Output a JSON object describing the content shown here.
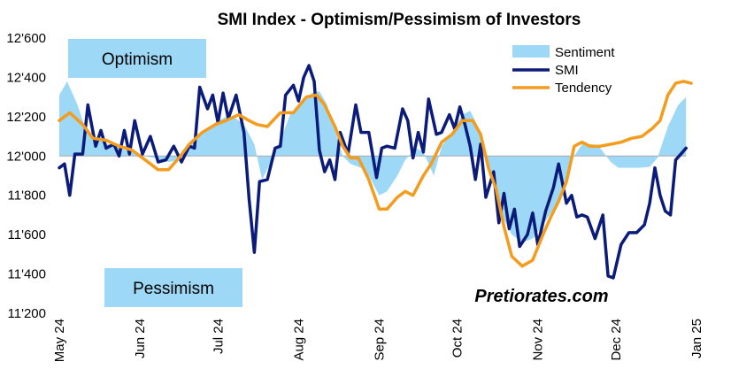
{
  "chart_data": {
    "type": "line",
    "title": "SMI Index - Optimism/Pessimism of Investors",
    "ylim": [
      11200,
      12600
    ],
    "yticks": [
      {
        "value": 12600,
        "label": "12'600"
      },
      {
        "value": 12400,
        "label": "12'400"
      },
      {
        "value": 12200,
        "label": "12'200"
      },
      {
        "value": 12000,
        "label": "12'000"
      },
      {
        "value": 11800,
        "label": "11'800"
      },
      {
        "value": 11600,
        "label": "11'600"
      },
      {
        "value": 11400,
        "label": "11'400"
      },
      {
        "value": 11200,
        "label": "11'200"
      }
    ],
    "xlim": [
      "2024-05-01",
      "2025-01-01"
    ],
    "xticks": [
      {
        "date": "2024-05-01",
        "label": "May 24"
      },
      {
        "date": "2024-06-01",
        "label": "Jun 24"
      },
      {
        "date": "2024-07-01",
        "label": "Jul 24"
      },
      {
        "date": "2024-08-01",
        "label": "Aug 24"
      },
      {
        "date": "2024-09-01",
        "label": "Sep 24"
      },
      {
        "date": "2024-10-01",
        "label": "Oct 24"
      },
      {
        "date": "2024-11-01",
        "label": "Nov 24"
      },
      {
        "date": "2024-12-01",
        "label": "Dec 24"
      },
      {
        "date": "2025-01-01",
        "label": "Jan 25"
      }
    ],
    "baseline": 12000,
    "legend_position": "top-right",
    "grid": false,
    "zone_labels": {
      "upper": "Optimism",
      "lower": "Pessimism"
    },
    "watermark": "Pretiorates.com",
    "series": [
      {
        "name": "Sentiment",
        "type": "area",
        "color": "#9dd9f6",
        "points": [
          [
            "2024-05-01",
            12310
          ],
          [
            "2024-05-04",
            12380
          ],
          [
            "2024-05-08",
            12260
          ],
          [
            "2024-05-11",
            12140
          ],
          [
            "2024-05-15",
            12090
          ],
          [
            "2024-05-20",
            12060
          ],
          [
            "2024-05-24",
            12040
          ],
          [
            "2024-05-29",
            12020
          ],
          [
            "2024-06-03",
            12000
          ],
          [
            "2024-06-08",
            11985
          ],
          [
            "2024-06-12",
            11970
          ],
          [
            "2024-06-15",
            11975
          ],
          [
            "2024-06-19",
            12030
          ],
          [
            "2024-06-22",
            12080
          ],
          [
            "2024-06-26",
            12120
          ],
          [
            "2024-06-30",
            12170
          ],
          [
            "2024-07-04",
            12200
          ],
          [
            "2024-07-08",
            12190
          ],
          [
            "2024-07-11",
            12160
          ],
          [
            "2024-07-15",
            12060
          ],
          [
            "2024-07-18",
            11880
          ],
          [
            "2024-07-21",
            11960
          ],
          [
            "2024-07-25",
            12080
          ],
          [
            "2024-07-29",
            12220
          ],
          [
            "2024-08-02",
            12260
          ],
          [
            "2024-08-06",
            12320
          ],
          [
            "2024-08-09",
            12330
          ],
          [
            "2024-08-12",
            12260
          ],
          [
            "2024-08-15",
            12130
          ],
          [
            "2024-08-18",
            12000
          ],
          [
            "2024-08-21",
            11960
          ],
          [
            "2024-08-25",
            11940
          ],
          [
            "2024-08-28",
            11900
          ],
          [
            "2024-09-01",
            11800
          ],
          [
            "2024-09-04",
            11820
          ],
          [
            "2024-09-08",
            11900
          ],
          [
            "2024-09-11",
            11980
          ],
          [
            "2024-09-15",
            12040
          ],
          [
            "2024-09-18",
            12020
          ],
          [
            "2024-09-22",
            11900
          ],
          [
            "2024-09-25",
            12050
          ],
          [
            "2024-09-29",
            12120
          ],
          [
            "2024-10-03",
            12210
          ],
          [
            "2024-10-06",
            12230
          ],
          [
            "2024-10-09",
            12150
          ],
          [
            "2024-10-12",
            12000
          ],
          [
            "2024-10-15",
            11840
          ],
          [
            "2024-10-18",
            11700
          ],
          [
            "2024-10-22",
            11600
          ],
          [
            "2024-10-26",
            11560
          ],
          [
            "2024-10-30",
            11580
          ],
          [
            "2024-11-03",
            11650
          ],
          [
            "2024-11-07",
            11730
          ],
          [
            "2024-11-11",
            11830
          ],
          [
            "2024-11-14",
            11980
          ],
          [
            "2024-11-18",
            12060
          ],
          [
            "2024-11-22",
            12060
          ],
          [
            "2024-11-25",
            12040
          ],
          [
            "2024-11-29",
            11970
          ],
          [
            "2024-12-02",
            11940
          ],
          [
            "2024-12-06",
            11940
          ],
          [
            "2024-12-10",
            11940
          ],
          [
            "2024-12-14",
            11945
          ],
          [
            "2024-12-17",
            11990
          ],
          [
            "2024-12-21",
            12150
          ],
          [
            "2024-12-25",
            12260
          ],
          [
            "2024-12-28",
            12300
          ]
        ]
      },
      {
        "name": "SMI",
        "type": "line",
        "color": "#0b1b7a",
        "points": [
          [
            "2024-05-01",
            11940
          ],
          [
            "2024-05-03",
            11960
          ],
          [
            "2024-05-05",
            11800
          ],
          [
            "2024-05-07",
            12010
          ],
          [
            "2024-05-10",
            12010
          ],
          [
            "2024-05-12",
            12260
          ],
          [
            "2024-05-15",
            12050
          ],
          [
            "2024-05-17",
            12130
          ],
          [
            "2024-05-19",
            12040
          ],
          [
            "2024-05-22",
            12060
          ],
          [
            "2024-05-24",
            12000
          ],
          [
            "2024-05-26",
            12130
          ],
          [
            "2024-05-28",
            12010
          ],
          [
            "2024-05-30",
            12180
          ],
          [
            "2024-06-02",
            12010
          ],
          [
            "2024-06-05",
            12100
          ],
          [
            "2024-06-08",
            11970
          ],
          [
            "2024-06-11",
            11980
          ],
          [
            "2024-06-14",
            12050
          ],
          [
            "2024-06-17",
            11970
          ],
          [
            "2024-06-20",
            12050
          ],
          [
            "2024-06-22",
            12040
          ],
          [
            "2024-06-24",
            12350
          ],
          [
            "2024-06-27",
            12240
          ],
          [
            "2024-06-29",
            12310
          ],
          [
            "2024-07-01",
            12170
          ],
          [
            "2024-07-03",
            12320
          ],
          [
            "2024-07-05",
            12190
          ],
          [
            "2024-07-08",
            12310
          ],
          [
            "2024-07-11",
            12120
          ],
          [
            "2024-07-13",
            11780
          ],
          [
            "2024-07-15",
            11510
          ],
          [
            "2024-07-17",
            11870
          ],
          [
            "2024-07-20",
            11880
          ],
          [
            "2024-07-23",
            12040
          ],
          [
            "2024-07-25",
            12050
          ],
          [
            "2024-07-27",
            12310
          ],
          [
            "2024-07-30",
            12360
          ],
          [
            "2024-08-01",
            12280
          ],
          [
            "2024-08-03",
            12400
          ],
          [
            "2024-08-05",
            12460
          ],
          [
            "2024-08-07",
            12380
          ],
          [
            "2024-08-09",
            12030
          ],
          [
            "2024-08-11",
            11920
          ],
          [
            "2024-08-13",
            11980
          ],
          [
            "2024-08-15",
            11880
          ],
          [
            "2024-08-17",
            12120
          ],
          [
            "2024-08-20",
            12010
          ],
          [
            "2024-08-23",
            12260
          ],
          [
            "2024-08-25",
            12120
          ],
          [
            "2024-08-28",
            12120
          ],
          [
            "2024-08-31",
            11890
          ],
          [
            "2024-09-02",
            12040
          ],
          [
            "2024-09-04",
            12050
          ],
          [
            "2024-09-07",
            12040
          ],
          [
            "2024-09-10",
            12240
          ],
          [
            "2024-09-12",
            12180
          ],
          [
            "2024-09-14",
            11990
          ],
          [
            "2024-09-16",
            12120
          ],
          [
            "2024-09-18",
            12020
          ],
          [
            "2024-09-20",
            12290
          ],
          [
            "2024-09-23",
            12110
          ],
          [
            "2024-09-25",
            12120
          ],
          [
            "2024-09-28",
            12210
          ],
          [
            "2024-09-30",
            12140
          ],
          [
            "2024-10-02",
            12250
          ],
          [
            "2024-10-04",
            12160
          ],
          [
            "2024-10-06",
            12050
          ],
          [
            "2024-10-08",
            11880
          ],
          [
            "2024-10-10",
            12060
          ],
          [
            "2024-10-12",
            11790
          ],
          [
            "2024-10-15",
            11920
          ],
          [
            "2024-10-17",
            11660
          ],
          [
            "2024-10-19",
            11810
          ],
          [
            "2024-10-21",
            11630
          ],
          [
            "2024-10-23",
            11730
          ],
          [
            "2024-10-25",
            11540
          ],
          [
            "2024-10-28",
            11600
          ],
          [
            "2024-10-30",
            11710
          ],
          [
            "2024-11-01",
            11550
          ],
          [
            "2024-11-04",
            11720
          ],
          [
            "2024-11-07",
            11840
          ],
          [
            "2024-11-09",
            11960
          ],
          [
            "2024-11-12",
            11760
          ],
          [
            "2024-11-14",
            11800
          ],
          [
            "2024-11-16",
            11690
          ],
          [
            "2024-11-18",
            11700
          ],
          [
            "2024-11-20",
            11690
          ],
          [
            "2024-11-23",
            11580
          ],
          [
            "2024-11-26",
            11700
          ],
          [
            "2024-11-28",
            11390
          ],
          [
            "2024-11-30",
            11380
          ],
          [
            "2024-12-03",
            11550
          ],
          [
            "2024-12-06",
            11610
          ],
          [
            "2024-12-09",
            11610
          ],
          [
            "2024-12-12",
            11650
          ],
          [
            "2024-12-14",
            11760
          ],
          [
            "2024-12-16",
            11940
          ],
          [
            "2024-12-18",
            11800
          ],
          [
            "2024-12-20",
            11720
          ],
          [
            "2024-12-22",
            11700
          ],
          [
            "2024-12-24",
            11980
          ],
          [
            "2024-12-26",
            12010
          ],
          [
            "2024-12-28",
            12040
          ]
        ]
      },
      {
        "name": "Tendency",
        "type": "line",
        "color": "#f39c1e",
        "points": [
          [
            "2024-05-01",
            12180
          ],
          [
            "2024-05-05",
            12220
          ],
          [
            "2024-05-10",
            12160
          ],
          [
            "2024-05-14",
            12090
          ],
          [
            "2024-05-19",
            12080
          ],
          [
            "2024-05-24",
            12050
          ],
          [
            "2024-05-29",
            12030
          ],
          [
            "2024-06-03",
            11980
          ],
          [
            "2024-06-08",
            11930
          ],
          [
            "2024-06-12",
            11930
          ],
          [
            "2024-06-16",
            11990
          ],
          [
            "2024-06-20",
            12060
          ],
          [
            "2024-06-25",
            12120
          ],
          [
            "2024-06-30",
            12160
          ],
          [
            "2024-07-04",
            12180
          ],
          [
            "2024-07-09",
            12210
          ],
          [
            "2024-07-13",
            12180
          ],
          [
            "2024-07-16",
            12160
          ],
          [
            "2024-07-20",
            12150
          ],
          [
            "2024-07-25",
            12220
          ],
          [
            "2024-07-30",
            12220
          ],
          [
            "2024-08-04",
            12300
          ],
          [
            "2024-08-08",
            12310
          ],
          [
            "2024-08-11",
            12260
          ],
          [
            "2024-08-15",
            12150
          ],
          [
            "2024-08-18",
            12050
          ],
          [
            "2024-08-21",
            11990
          ],
          [
            "2024-08-24",
            11990
          ],
          [
            "2024-08-28",
            11880
          ],
          [
            "2024-09-01",
            11730
          ],
          [
            "2024-09-04",
            11730
          ],
          [
            "2024-09-08",
            11790
          ],
          [
            "2024-09-11",
            11820
          ],
          [
            "2024-09-14",
            11800
          ],
          [
            "2024-09-18",
            11900
          ],
          [
            "2024-09-21",
            11960
          ],
          [
            "2024-09-25",
            12070
          ],
          [
            "2024-09-29",
            12110
          ],
          [
            "2024-10-03",
            12180
          ],
          [
            "2024-10-07",
            12180
          ],
          [
            "2024-10-10",
            12110
          ],
          [
            "2024-10-13",
            11940
          ],
          [
            "2024-10-16",
            11830
          ],
          [
            "2024-10-19",
            11640
          ],
          [
            "2024-10-22",
            11490
          ],
          [
            "2024-10-26",
            11440
          ],
          [
            "2024-10-30",
            11470
          ],
          [
            "2024-11-03",
            11600
          ],
          [
            "2024-11-06",
            11690
          ],
          [
            "2024-11-09",
            11770
          ],
          [
            "2024-11-12",
            11870
          ],
          [
            "2024-11-15",
            12050
          ],
          [
            "2024-11-18",
            12070
          ],
          [
            "2024-11-21",
            12050
          ],
          [
            "2024-11-25",
            12050
          ],
          [
            "2024-11-29",
            12060
          ],
          [
            "2024-12-03",
            12070
          ],
          [
            "2024-12-07",
            12090
          ],
          [
            "2024-12-11",
            12100
          ],
          [
            "2024-12-15",
            12140
          ],
          [
            "2024-12-18",
            12180
          ],
          [
            "2024-12-21",
            12310
          ],
          [
            "2024-12-24",
            12370
          ],
          [
            "2024-12-27",
            12380
          ],
          [
            "2024-12-30",
            12370
          ]
        ]
      }
    ]
  }
}
